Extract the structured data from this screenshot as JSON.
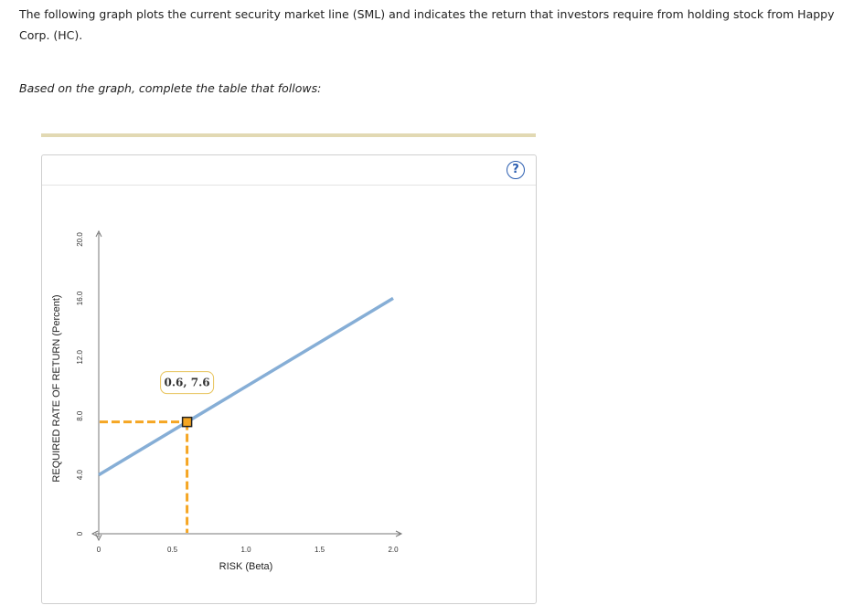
{
  "intro_text": "The following graph plots the current security market line (SML) and indicates the return that investors require from holding stock from Happy Corp. (HC).",
  "instruction_text": "Based on the graph, complete the table that follows:",
  "help_label": "?",
  "colors": {
    "sml_line": "#86aed6",
    "guide": "#f5a623",
    "point_fill": "#f5a623",
    "point_border": "#222222",
    "axis": "#777777",
    "divider": "#e2d9b3"
  },
  "chart_data": {
    "type": "line",
    "xlabel": "RISK (Beta)",
    "ylabel": "REQUIRED RATE OF RETURN (Percent)",
    "xlim": [
      0,
      2.0
    ],
    "ylim": [
      0,
      20.0
    ],
    "x_ticks": [
      {
        "value": 0,
        "label": "0"
      },
      {
        "value": 0.5,
        "label": "0.5"
      },
      {
        "value": 1.0,
        "label": "1.0"
      },
      {
        "value": 1.5,
        "label": "1.5"
      },
      {
        "value": 2.0,
        "label": "2.0"
      }
    ],
    "y_ticks": [
      {
        "value": 0,
        "label": "0"
      },
      {
        "value": 4.0,
        "label": "4.0"
      },
      {
        "value": 8.0,
        "label": "8.0"
      },
      {
        "value": 12.0,
        "label": "12.0"
      },
      {
        "value": 16.0,
        "label": "16.0"
      },
      {
        "value": 20.0,
        "label": "20.0"
      }
    ],
    "series": [
      {
        "points": [
          [
            0,
            4.0
          ],
          [
            2.0,
            16.0
          ]
        ]
      }
    ],
    "highlight_point": {
      "x": 0.6,
      "y": 7.6,
      "label": "0.6, 7.6"
    },
    "grid": false
  }
}
